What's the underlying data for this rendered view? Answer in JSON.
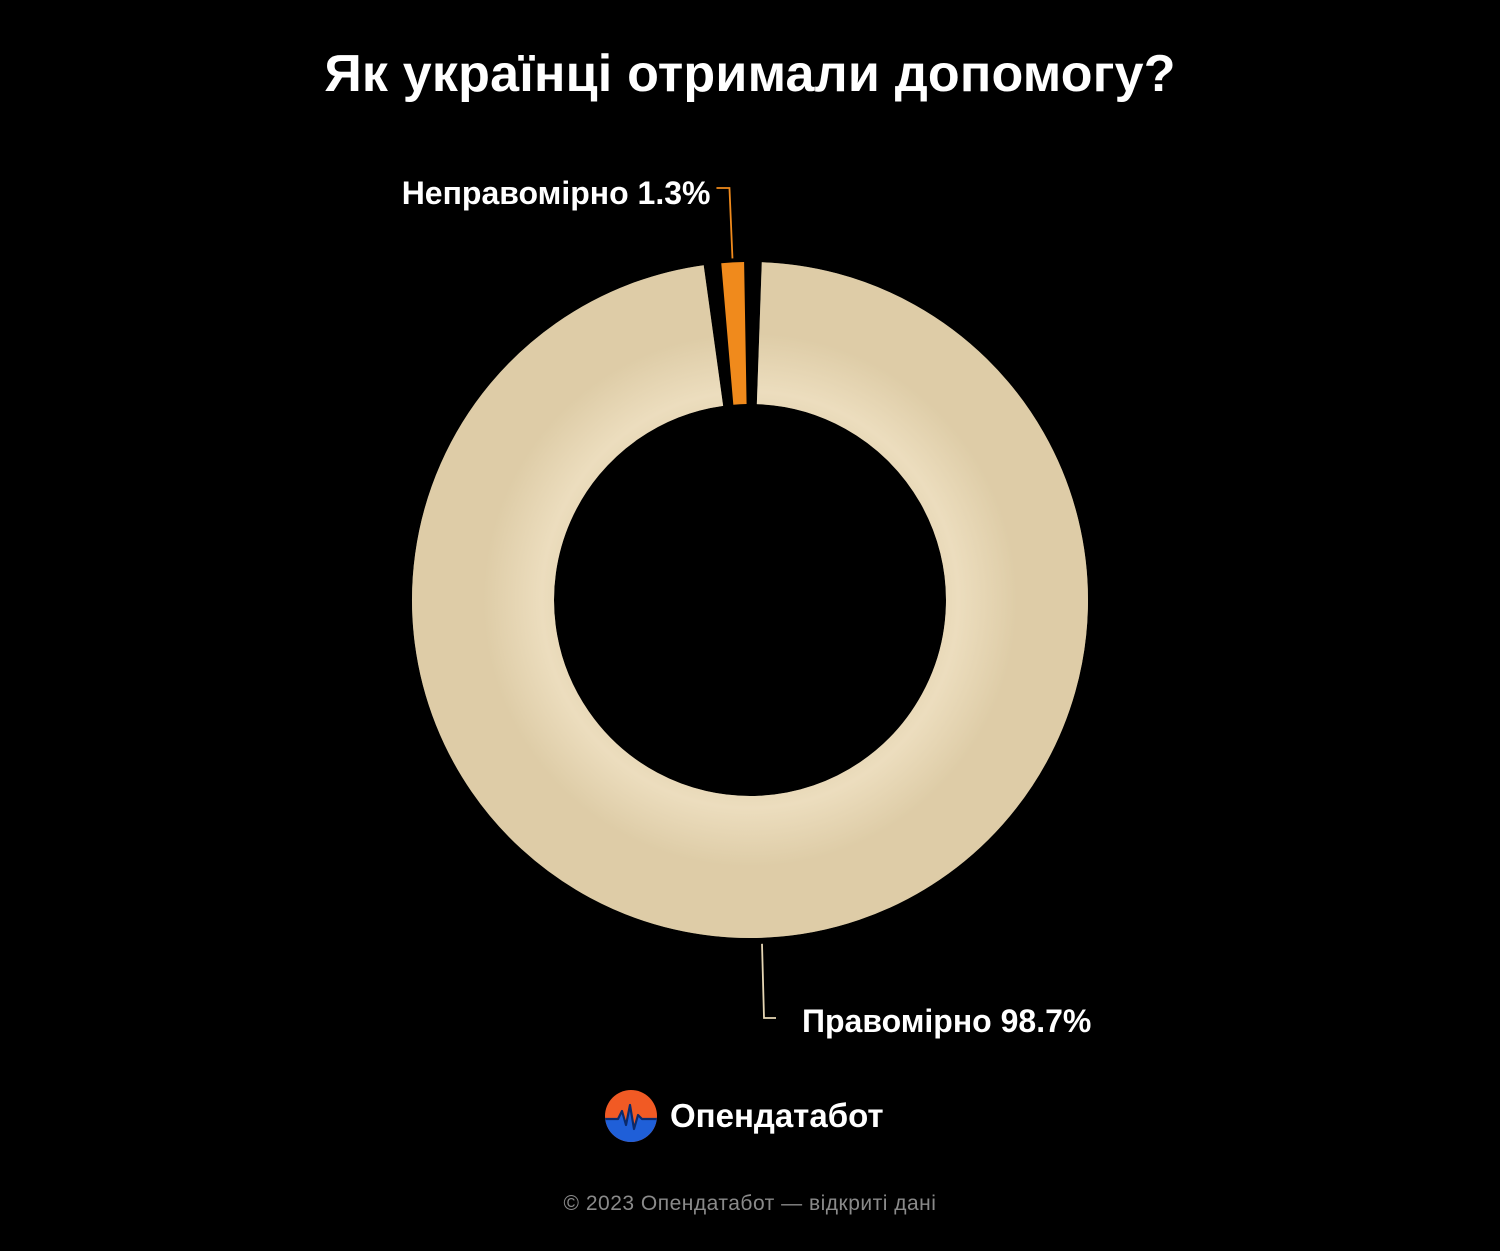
{
  "colors": {
    "background": "#000000",
    "lawful": "#e6d6b4",
    "unlawful": "#f08a1c",
    "text": "#ffffff",
    "muted": "#8a8a8a"
  },
  "chart_data": {
    "type": "pie",
    "title": "Як українці отримали допомогу?",
    "donut": true,
    "slices": [
      {
        "label": "Неправомірно",
        "value": 1.3,
        "display": "Неправомірно 1.3%",
        "color": "#f08a1c"
      },
      {
        "label": "Правомірно",
        "value": 98.7,
        "display": "Правомірно 98.7%",
        "color": "#e6d6b4"
      }
    ]
  },
  "brand": {
    "name": "Опендатабот",
    "icon": "opendatabot-logo-icon"
  },
  "footer": {
    "copyright": "© 2023 Опендатабот — відкриті дані"
  }
}
